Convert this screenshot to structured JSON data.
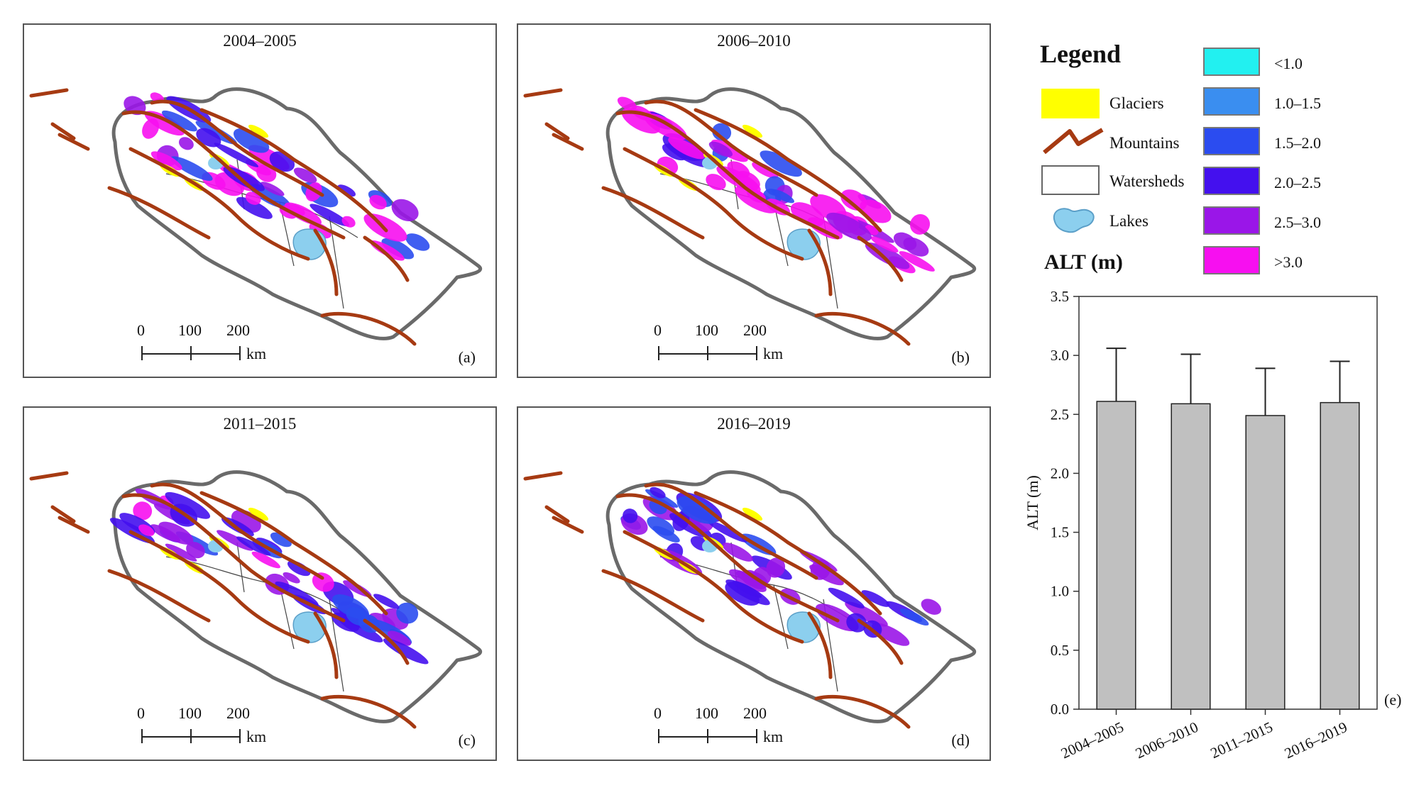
{
  "panels": [
    {
      "title": "2004–2005",
      "label": "(a)"
    },
    {
      "title": "2006–2010",
      "label": "(b)"
    },
    {
      "title": "2011–2015",
      "label": "(c)"
    },
    {
      "title": "2016–2019",
      "label": "(d)"
    }
  ],
  "scale_bar": {
    "ticks": [
      "0",
      "100",
      "200"
    ],
    "unit": "km"
  },
  "legend": {
    "title": "Legend",
    "items": [
      {
        "label": "Glaciers",
        "color": "#ffff00"
      },
      {
        "label": "Mountains",
        "color": "#a63a12"
      },
      {
        "label": "Watersheds",
        "color": "#ffffff"
      },
      {
        "label": "Lakes",
        "color": "#8ccfee"
      }
    ],
    "alt_title": "ALT (m)",
    "classes": [
      {
        "label": "<1.0",
        "color": "#22f0f0"
      },
      {
        "label": "1.0–1.5",
        "color": "#3a8ef0"
      },
      {
        "label": "1.5–2.0",
        "color": "#2b4cf0"
      },
      {
        "label": "2.0–2.5",
        "color": "#4410ee"
      },
      {
        "label": "2.5–3.0",
        "color": "#9a16e8"
      },
      {
        "label": ">3.0",
        "color": "#f70ff0"
      }
    ]
  },
  "chart_data": {
    "type": "bar",
    "categories": [
      "2004–2005",
      "2006–2010",
      "2011–2015",
      "2016–2019"
    ],
    "values": [
      2.61,
      2.59,
      2.49,
      2.6
    ],
    "errors": [
      0.45,
      0.42,
      0.4,
      0.35
    ],
    "title": "",
    "xlabel": "",
    "ylabel": "ALT (m)",
    "ylim": [
      0,
      3.5
    ],
    "yticks": [
      "0.0",
      "0.5",
      "1.0",
      "1.5",
      "2.0",
      "2.5",
      "3.0",
      "3.5"
    ],
    "panel_label": "(e)",
    "bar_color": "#c0c0c0"
  }
}
